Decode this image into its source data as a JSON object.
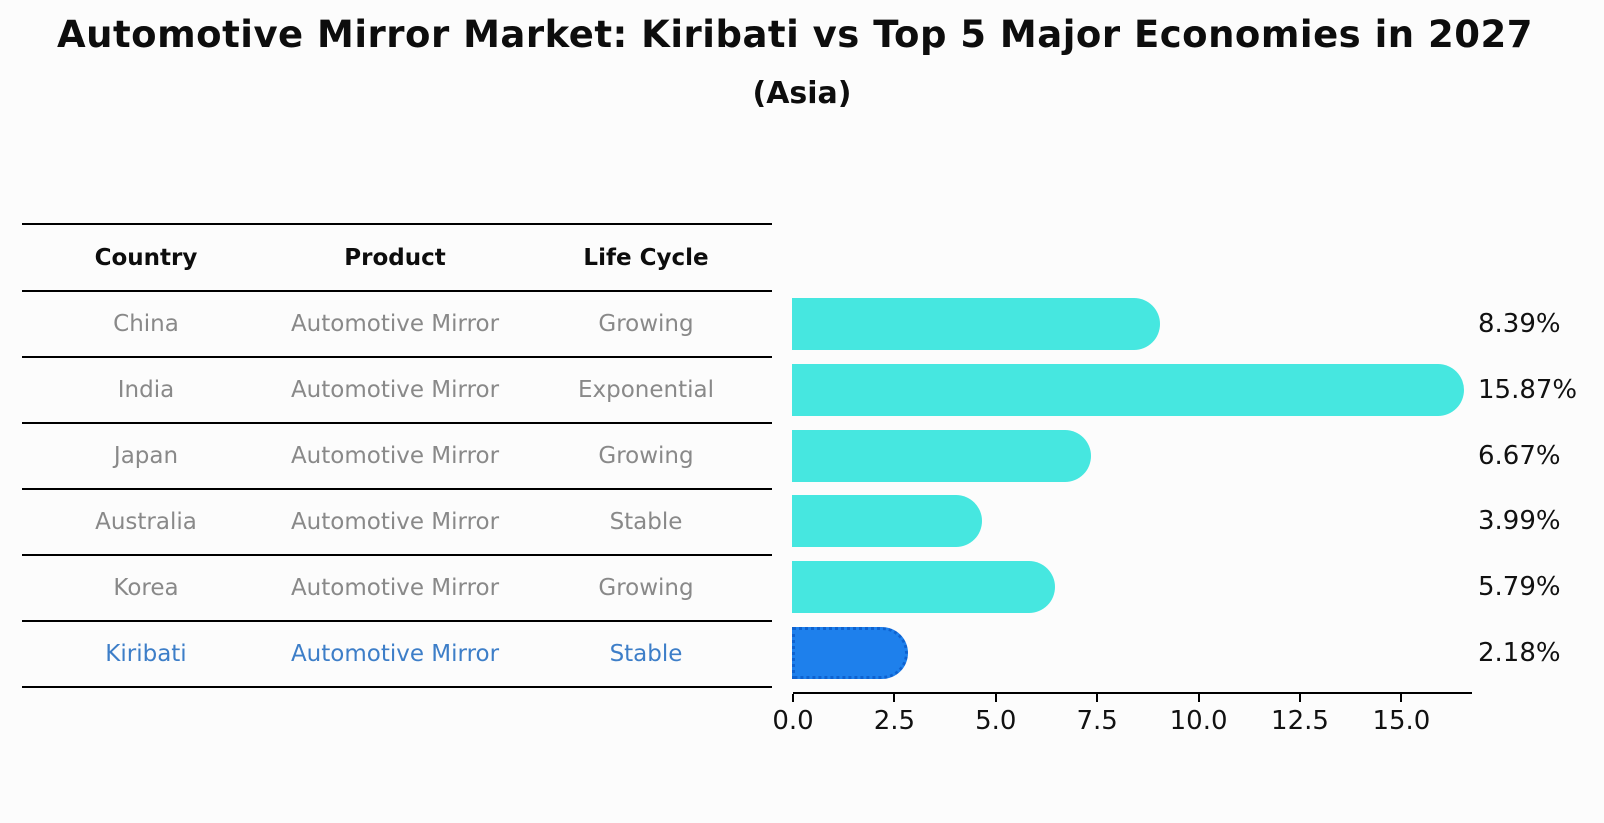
{
  "title": "Automotive Mirror Market: Kiribati vs Top 5 Major Economies in 2027",
  "subtitle": "(Asia)",
  "table": {
    "headers": [
      "Country",
      "Product",
      "Life Cycle"
    ],
    "rows": [
      {
        "country": "China",
        "product": "Automotive Mirror",
        "life_cycle": "Growing",
        "highlight": false
      },
      {
        "country": "India",
        "product": "Automotive Mirror",
        "life_cycle": "Exponential",
        "highlight": false
      },
      {
        "country": "Japan",
        "product": "Automotive Mirror",
        "life_cycle": "Growing",
        "highlight": false
      },
      {
        "country": "Australia",
        "product": "Automotive Mirror",
        "life_cycle": "Stable",
        "highlight": false
      },
      {
        "country": "Korea",
        "product": "Automotive Mirror",
        "life_cycle": "Growing",
        "highlight": false
      },
      {
        "country": "Kiribati",
        "product": "Automotive Mirror",
        "life_cycle": "Stable",
        "highlight": true
      }
    ]
  },
  "chart_data": {
    "type": "bar",
    "orientation": "horizontal",
    "title": "Automotive Mirror Market: Kiribati vs Top 5 Major Economies in 2027 (Asia)",
    "categories": [
      "China",
      "India",
      "Japan",
      "Australia",
      "Korea",
      "Kiribati"
    ],
    "values": [
      8.39,
      15.87,
      6.67,
      3.99,
      5.79,
      2.18
    ],
    "value_labels": [
      "8.39%",
      "15.87%",
      "6.67%",
      "3.99%",
      "5.79%",
      "2.18%"
    ],
    "unit": "percent CAGR",
    "highlight_index": 5,
    "xlim": [
      0,
      16.74
    ],
    "xticks": [
      0,
      2.5,
      5,
      7.5,
      10,
      12.5,
      15
    ],
    "xtick_labels": [
      "0.0",
      "2.5",
      "5.0",
      "7.5",
      "10.0",
      "12.5",
      "15.0"
    ],
    "grid": false,
    "legend": false,
    "colors": {
      "bar": "#46e7e0",
      "highlight_bar": "#1e80ec",
      "highlight_bar_border": "#0e62d0",
      "highlight_text": "#3d7ec8",
      "text": "#111111",
      "muted_text": "#898989"
    }
  }
}
